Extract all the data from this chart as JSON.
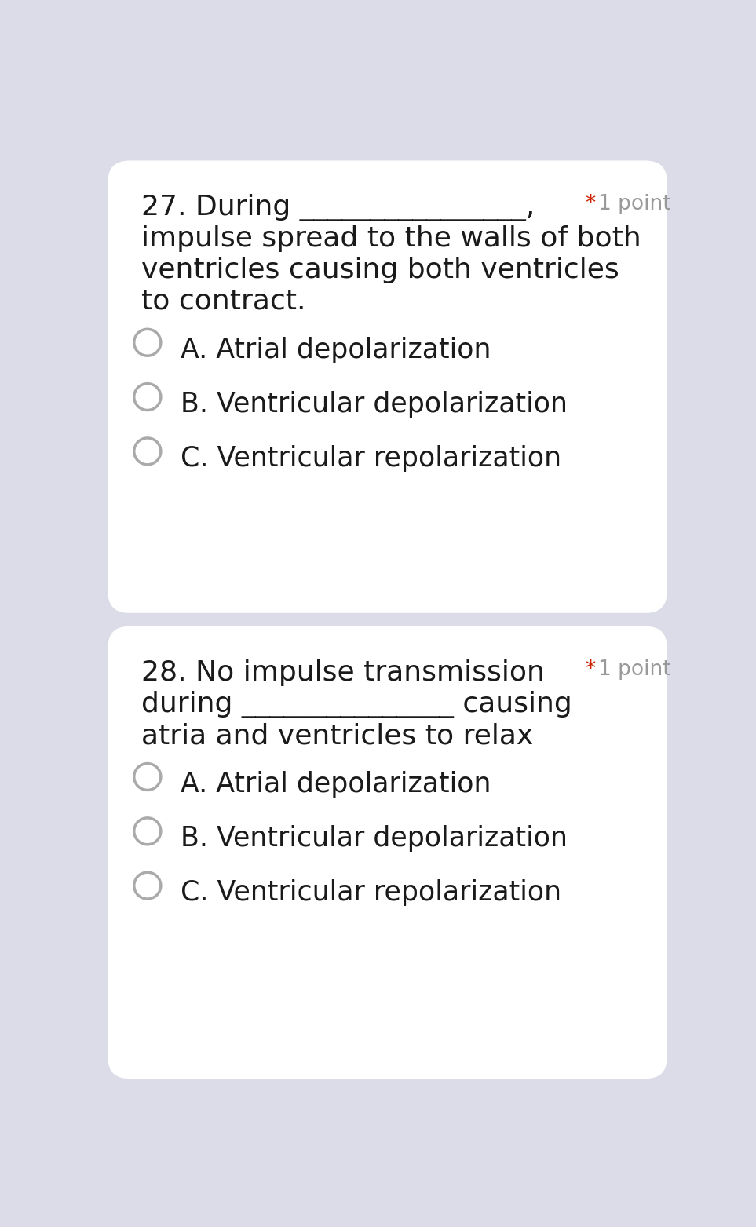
{
  "bg_color": "#dcdce8",
  "card_color": "#ffffff",
  "questions": [
    {
      "q_line1": "27. During ________________,",
      "q_line2": "impulse spread to the walls of both",
      "q_line3": "ventricles causing both ventricles",
      "q_line4": "to contract.",
      "options": [
        "A. Atrial depolarization",
        "B. Ventricular depolarization",
        "C. Ventricular repolarization"
      ]
    },
    {
      "q_line1": "28. No impulse transmission",
      "q_line2": "during _______________ causing",
      "q_line3": "atria and ventricles to relax",
      "q_line4": "",
      "options": [
        "A. Atrial depolarization",
        "B. Ventricular depolarization",
        "C. Ventricular repolarization"
      ]
    }
  ],
  "text_color": "#1a1a1a",
  "point_star_color": "#cc2200",
  "point_text_color": "#999999",
  "radio_color": "#aaaaaa",
  "question_fontsize": 26,
  "option_fontsize": 25,
  "point_fontsize": 19
}
